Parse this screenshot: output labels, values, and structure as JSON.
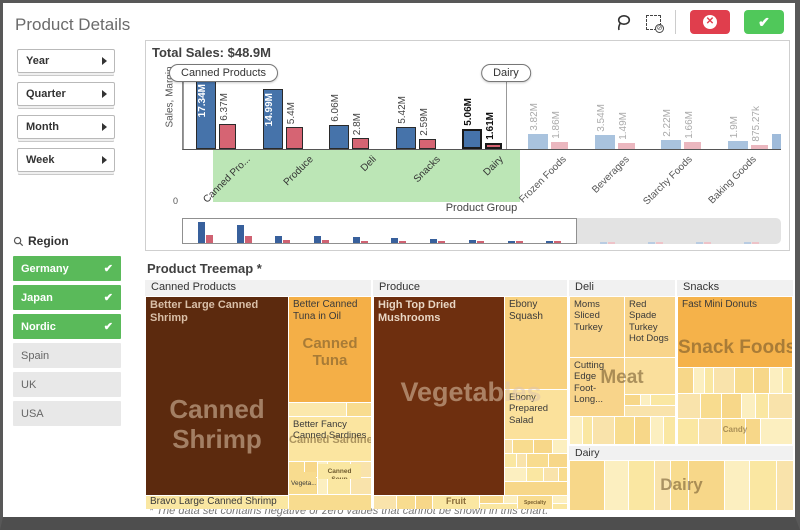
{
  "app": {
    "title": "Product Details"
  },
  "sidebar": {
    "filters": [
      {
        "label": "Year"
      },
      {
        "label": "Quarter"
      },
      {
        "label": "Month"
      },
      {
        "label": "Week"
      }
    ],
    "region": {
      "header": "Region",
      "items": [
        {
          "label": "Germany",
          "selected": true
        },
        {
          "label": "Japan",
          "selected": true
        },
        {
          "label": "Nordic",
          "selected": true
        },
        {
          "label": "Spain",
          "selected": false
        },
        {
          "label": "UK",
          "selected": false
        },
        {
          "label": "USA",
          "selected": false
        }
      ],
      "selected_color": "#5aba5a",
      "check_glyph": "✔"
    }
  },
  "toolbar": {
    "icons": [
      "lasso-icon",
      "clear-selection-icon"
    ],
    "cancel_glyph": "✕",
    "confirm_glyph": "✔"
  },
  "chart": {
    "header": "Total Sales: $48.9M",
    "handle_left": "Canned Products",
    "handle_right": "Dairy",
    "y_zero": "0"
  },
  "chart_data": {
    "type": "bar",
    "title": "Total Sales: $48.9M",
    "xlabel": "Product Group",
    "ylabel": "Sales, Margin",
    "ylim": [
      0,
      18
    ],
    "categories": [
      "Canned Pro...",
      "Produce",
      "Deli",
      "Snacks",
      "Dairy",
      "Frozen Foods",
      "Beverages",
      "Starchy Foods",
      "Baking Goods"
    ],
    "series": [
      {
        "name": "Sales",
        "values": [
          17.34,
          14.99,
          6.06,
          5.42,
          5.06,
          3.82,
          3.54,
          2.22,
          1.9
        ]
      },
      {
        "name": "Margin",
        "values": [
          6.37,
          5.4,
          2.8,
          2.59,
          1.61,
          1.86,
          1.49,
          1.66,
          0.88
        ]
      }
    ],
    "sales_labels": [
      "17.34M",
      "14.99M",
      "6.06M",
      "5.42M",
      "5.06M",
      "3.82M",
      "3.54M",
      "2.22M",
      "1.9M"
    ],
    "margin_labels": [
      "6.37M",
      "5.4M",
      "2.8M",
      "2.59M",
      "1.61M",
      "1.86M",
      "1.49M",
      "1.66M",
      "875.27k"
    ],
    "selected": [
      true,
      true,
      true,
      true,
      true,
      false,
      false,
      false,
      false
    ],
    "highlight_index": 4,
    "selection_range": [
      "Canned Products",
      "Dairy"
    ],
    "legend_position": "none",
    "grid": false,
    "overview": {
      "in_window": [
        [
          17.3,
          6.4
        ],
        [
          15,
          5.4
        ],
        [
          6.1,
          2.8
        ],
        [
          5.4,
          2.6
        ],
        [
          5.1,
          1.6
        ],
        [
          3.8,
          1.9
        ],
        [
          3.5,
          1.5
        ],
        [
          2.2,
          1.7
        ],
        [
          1.9,
          0.9
        ],
        [
          1.5,
          0.8
        ]
      ],
      "outside": [
        [
          1.3,
          0.7
        ],
        [
          1.1,
          0.6
        ],
        [
          1.0,
          0.55
        ],
        [
          0.9,
          0.5
        ]
      ]
    }
  },
  "treemap": {
    "title": "Product Treemap *",
    "palette": [
      "#fae7a2",
      "#f8dc8f",
      "#fcefc0",
      "#f9e3ab",
      "#f7d789"
    ],
    "groups": {
      "canned": {
        "header": "Canned Products"
      },
      "produce": {
        "header": "Produce"
      },
      "deli": {
        "header": "Deli"
      },
      "snacks": {
        "header": "Snacks"
      },
      "dairy": {
        "header": "Dairy"
      }
    },
    "cells": {
      "shrimp": {
        "label": "Better Large Canned Shrimp",
        "overlay": "Canned Shrimp",
        "color": "#5c2a0e"
      },
      "bravo": {
        "label": "Bravo Large Canned Shrimp"
      },
      "tuna": {
        "label": "Better Canned Tuna in Oil",
        "overlay": "Canned Tuna",
        "color": "#f4af47"
      },
      "sardines": {
        "label": "Better Fancy Canned Sardines",
        "overlay": "Canned Sardines"
      },
      "vegeta": {
        "label": "Vegeta...."
      },
      "soup": {
        "label": "Canned Soup"
      },
      "mushrooms": {
        "label": "High Top Dried Mushrooms",
        "overlay": "Vegetables",
        "color": "#6e2f0f"
      },
      "squash": {
        "label": "Ebony Squash"
      },
      "salad": {
        "label": "Ebony Prepared Salad"
      },
      "fruit": {
        "label": "Fruit"
      },
      "specialty": {
        "label": "Specialty"
      },
      "moms": {
        "label": "Moms Sliced Turkey"
      },
      "redspade": {
        "label": "Red Spade Turkey Hot Dogs"
      },
      "cutting": {
        "label": "Cutting Edge Foot-Long...",
        "overlay": "Meat"
      },
      "donuts": {
        "label": "Fast Mini Donuts",
        "overlay": "Snack Foods",
        "color": "#f5b24a"
      },
      "candy": {
        "label": "Candy"
      },
      "dairy_overlay": "Dairy"
    }
  },
  "footnote": "* The data set contains negative or zero values that cannot be shown in this chart."
}
